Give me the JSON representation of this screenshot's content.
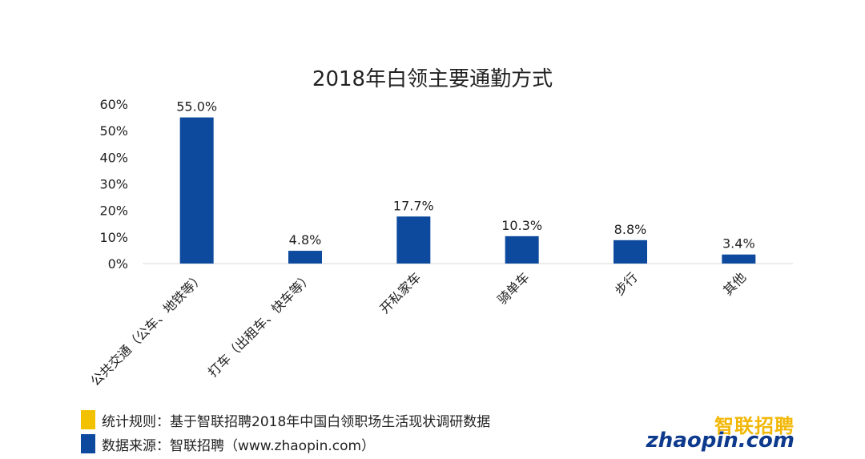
{
  "chart_data": {
    "type": "bar",
    "title": "2018年白领主要通勤方式",
    "categories": [
      "公共交通（公车、地铁等）",
      "打车（出租车、快车等）",
      "开私家车",
      "骑单车",
      "步行",
      "其他"
    ],
    "values": [
      55.0,
      4.8,
      17.7,
      10.3,
      8.8,
      3.4
    ],
    "value_labels": [
      "55.0%",
      "4.8%",
      "17.7%",
      "10.3%",
      "8.8%",
      "3.4%"
    ],
    "ylim": [
      0,
      60
    ],
    "y_ticks": [
      0,
      10,
      20,
      30,
      40,
      50,
      60
    ],
    "y_tick_labels": [
      "0%",
      "10%",
      "20%",
      "30%",
      "40%",
      "50%",
      "60%"
    ],
    "xlabel": "",
    "ylabel": "",
    "grid": false,
    "bar_color": "#0d4a9e"
  },
  "legend": {
    "items": [
      {
        "text": "统计规则：基于智联招聘2018年中国白领职场生活现状调研数据",
        "color": "#f2c200"
      },
      {
        "text": "数据来源：智联招聘（www.zhaopin.com）",
        "color": "#0d4a9e"
      }
    ]
  },
  "logo": {
    "cn": "智联招聘",
    "en": "zhaopin.com"
  }
}
